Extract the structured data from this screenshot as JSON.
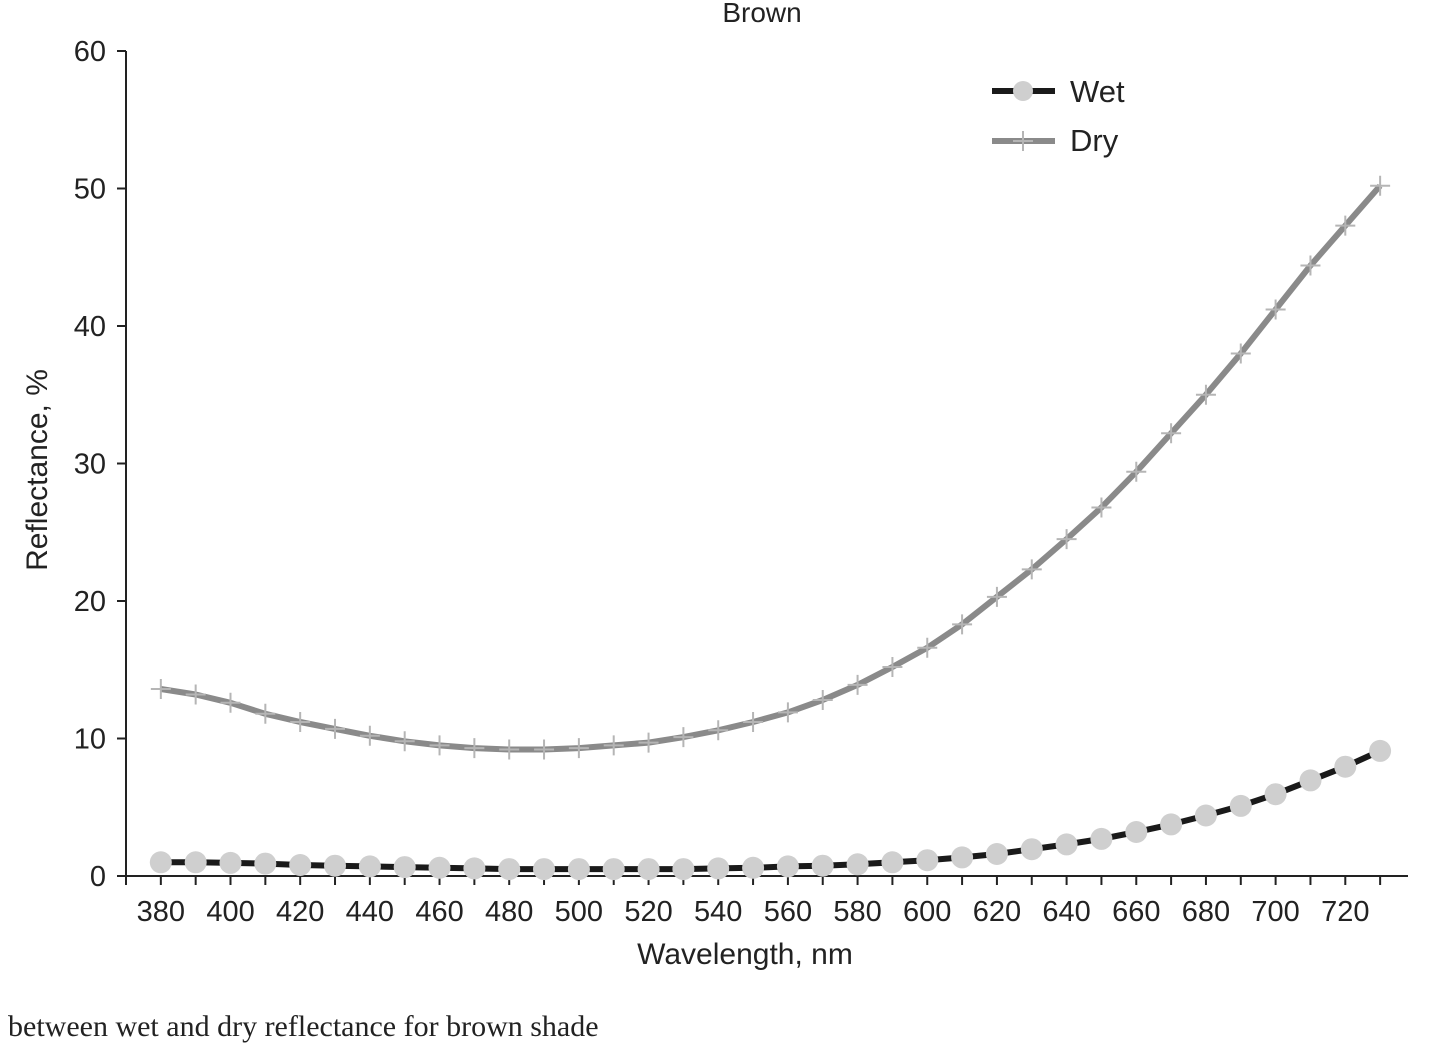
{
  "chart_data": {
    "type": "line",
    "title": "Brown",
    "xlabel": "Wavelength, nm",
    "ylabel": "Reflectance, %",
    "xlim": [
      370,
      738
    ],
    "ylim": [
      0,
      60
    ],
    "x_ticks": [
      380,
      400,
      420,
      440,
      460,
      480,
      500,
      520,
      540,
      560,
      580,
      600,
      620,
      640,
      660,
      680,
      700,
      720
    ],
    "y_ticks": [
      0,
      10,
      20,
      30,
      40,
      50,
      60
    ],
    "legend_position": "top-right",
    "grid": false,
    "x": [
      380,
      390,
      400,
      410,
      420,
      430,
      440,
      450,
      460,
      470,
      480,
      490,
      500,
      510,
      520,
      530,
      540,
      550,
      560,
      570,
      580,
      590,
      600,
      610,
      620,
      630,
      640,
      650,
      660,
      670,
      680,
      690,
      700,
      710,
      720,
      730
    ],
    "series": [
      {
        "name": "Wet",
        "color": "#1a1a1a",
        "marker_color": "#cfcfcf",
        "marker": "circle",
        "values": [
          1.0,
          1.0,
          0.95,
          0.9,
          0.8,
          0.75,
          0.7,
          0.65,
          0.6,
          0.55,
          0.5,
          0.5,
          0.5,
          0.5,
          0.5,
          0.5,
          0.55,
          0.6,
          0.7,
          0.75,
          0.85,
          1.0,
          1.15,
          1.35,
          1.6,
          1.95,
          2.3,
          2.7,
          3.2,
          3.75,
          4.4,
          5.1,
          5.95,
          6.95,
          7.95,
          9.1
        ]
      },
      {
        "name": "Dry",
        "color": "#8a8a8a",
        "marker_color": "#b5b5b5",
        "marker": "plus",
        "values": [
          13.6,
          13.2,
          12.6,
          11.8,
          11.2,
          10.7,
          10.2,
          9.8,
          9.5,
          9.3,
          9.2,
          9.2,
          9.3,
          9.5,
          9.7,
          10.1,
          10.6,
          11.2,
          11.9,
          12.8,
          13.9,
          15.2,
          16.6,
          18.3,
          20.3,
          22.3,
          24.5,
          26.8,
          29.4,
          32.2,
          35.0,
          38.0,
          41.2,
          44.4,
          47.3,
          50.2
        ]
      }
    ]
  },
  "caption": "between wet and dry reflectance for brown shade"
}
